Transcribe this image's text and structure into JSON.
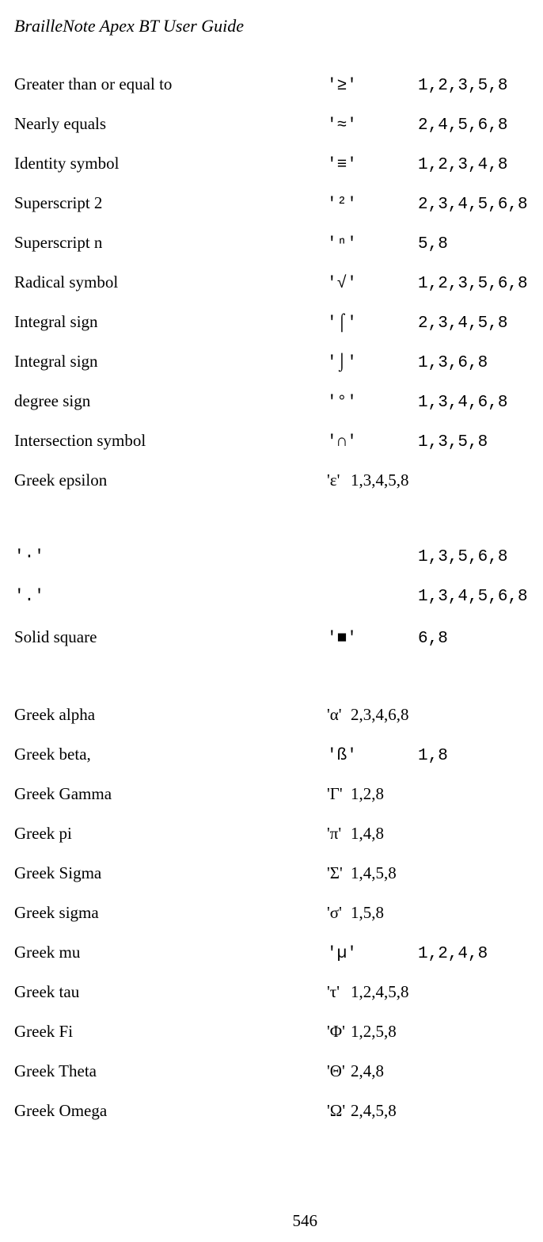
{
  "title": "BrailleNote Apex BT User Guide",
  "page_number": "546",
  "rows": [
    {
      "desc": "Greater than or equal to",
      "sym": "'≥'",
      "code": "1,2,3,5,8",
      "desc_mono": false,
      "sym_serif": false,
      "sym_tight": false,
      "code_serif": false,
      "gap": false
    },
    {
      "desc": "Nearly equals",
      "sym": "'≈'",
      "code": "2,4,5,6,8",
      "desc_mono": false,
      "sym_serif": false,
      "sym_tight": false,
      "code_serif": false,
      "gap": false
    },
    {
      "desc": "Identity symbol",
      "sym": "'≡'",
      "code": "1,2,3,4,8",
      "desc_mono": false,
      "sym_serif": false,
      "sym_tight": false,
      "code_serif": false,
      "gap": false
    },
    {
      "desc": "Superscript 2",
      "sym": "'²'",
      "code": "2,3,4,5,6,8",
      "desc_mono": false,
      "sym_serif": false,
      "sym_tight": false,
      "code_serif": false,
      "gap": false
    },
    {
      "desc": "Superscript n",
      "sym": "'ⁿ'",
      "code": "5,8",
      "desc_mono": false,
      "sym_serif": false,
      "sym_tight": false,
      "code_serif": false,
      "gap": false
    },
    {
      "desc": "Radical symbol",
      "sym": "'√'",
      "code": "1,2,3,5,6,8",
      "desc_mono": false,
      "sym_serif": false,
      "sym_tight": false,
      "code_serif": false,
      "gap": false
    },
    {
      "desc": "Integral sign",
      "sym": "'⌠'",
      "code": "2,3,4,5,8",
      "desc_mono": false,
      "sym_serif": false,
      "sym_tight": false,
      "code_serif": false,
      "gap": false
    },
    {
      "desc": "Integral sign",
      "sym": "'⌡'",
      "code": "1,3,6,8",
      "desc_mono": false,
      "sym_serif": false,
      "sym_tight": false,
      "code_serif": false,
      "gap": false
    },
    {
      "desc": "degree sign",
      "sym": "'°'",
      "code": "1,3,4,6,8",
      "desc_mono": false,
      "sym_serif": false,
      "sym_tight": false,
      "code_serif": false,
      "gap": false
    },
    {
      "desc": "Intersection symbol",
      "sym": "'∩'",
      "code": "1,3,5,8",
      "desc_mono": false,
      "sym_serif": false,
      "sym_tight": false,
      "code_serif": false,
      "gap": false
    },
    {
      "desc": "Greek epsilon",
      "sym": "'ε'",
      "code": "1,3,4,5,8",
      "desc_mono": false,
      "sym_serif": true,
      "sym_tight": true,
      "code_serif": true,
      "gap": true
    },
    {
      "desc": "'·'",
      "sym": "",
      "code": "1,3,5,6,8",
      "desc_mono": true,
      "sym_serif": false,
      "sym_tight": false,
      "code_serif": false,
      "gap": false
    },
    {
      "desc": "'.'",
      "sym": "",
      "code": "1,3,4,5,6,8",
      "desc_mono": true,
      "sym_serif": false,
      "sym_tight": false,
      "code_serif": false,
      "gap": false
    },
    {
      "desc": "Solid square",
      "sym": "'■'",
      "code": "6,8",
      "desc_mono": false,
      "sym_serif": false,
      "sym_tight": false,
      "code_serif": false,
      "gap": true
    },
    {
      "desc": "Greek alpha",
      "sym": "'α'",
      "code": "2,3,4,6,8",
      "desc_mono": false,
      "sym_serif": true,
      "sym_tight": true,
      "code_serif": true,
      "gap": false
    },
    {
      "desc": "Greek beta,",
      "sym": "'ß'",
      "code": "1,8",
      "desc_mono": false,
      "sym_serif": false,
      "sym_tight": false,
      "code_serif": false,
      "gap": false
    },
    {
      "desc": "Greek Gamma",
      "sym": "'Γ'",
      "code": "1,2,8",
      "desc_mono": false,
      "sym_serif": true,
      "sym_tight": true,
      "code_serif": true,
      "gap": false
    },
    {
      "desc": "Greek pi",
      "sym": "'π'",
      "code": "1,4,8",
      "desc_mono": false,
      "sym_serif": true,
      "sym_tight": true,
      "code_serif": true,
      "gap": false
    },
    {
      "desc": "Greek Sigma",
      "sym": "'Σ'",
      "code": "1,4,5,8",
      "desc_mono": false,
      "sym_serif": true,
      "sym_tight": true,
      "code_serif": true,
      "gap": false
    },
    {
      "desc": "Greek sigma",
      "sym": "'σ'",
      "code": "1,5,8",
      "desc_mono": false,
      "sym_serif": true,
      "sym_tight": true,
      "code_serif": true,
      "gap": false
    },
    {
      "desc": "Greek mu",
      "sym": "'µ'",
      "code": "1,2,4,8",
      "desc_mono": false,
      "sym_serif": false,
      "sym_tight": false,
      "code_serif": false,
      "gap": false
    },
    {
      "desc": "Greek tau",
      "sym": "'τ'",
      "code": "1,2,4,5,8",
      "desc_mono": false,
      "sym_serif": true,
      "sym_tight": true,
      "code_serif": true,
      "gap": false
    },
    {
      "desc": "Greek Fi",
      "sym": "'Φ'",
      "code": "1,2,5,8",
      "desc_mono": false,
      "sym_serif": true,
      "sym_tight": true,
      "code_serif": true,
      "gap": false
    },
    {
      "desc": "Greek Theta",
      "sym": "'Θ'",
      "code": "2,4,8",
      "desc_mono": false,
      "sym_serif": true,
      "sym_tight": true,
      "code_serif": true,
      "gap": false
    },
    {
      "desc": "Greek Omega",
      "sym": "'Ω'",
      "code": "2,4,5,8",
      "desc_mono": false,
      "sym_serif": true,
      "sym_tight": true,
      "code_serif": true,
      "gap": false
    }
  ]
}
